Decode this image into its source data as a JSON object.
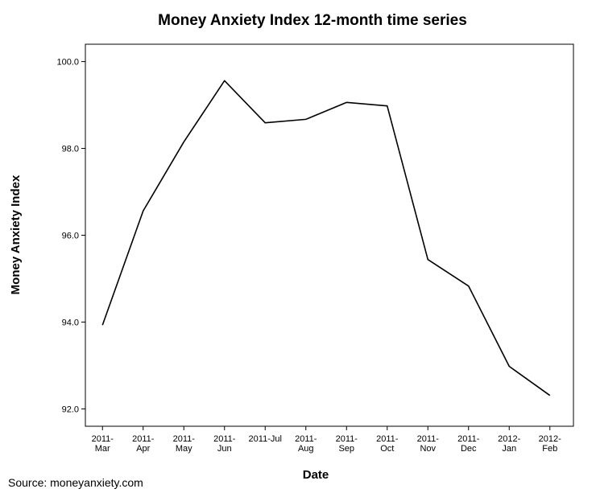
{
  "chart_data": {
    "type": "line",
    "title": "Money Anxiety Index 12-month time series",
    "x_label": "Date",
    "y_label": "Money Anxiety Index",
    "source": "Source: moneyanxiety.com",
    "categories": [
      "2011-\nMar",
      "2011-\nApr",
      "2011-\nMay",
      "2011-\nJun",
      "2011-Jul",
      "2011-\nAug",
      "2011-\nSep",
      "2011-\nOct",
      "2011-\nNov",
      "2011-\nDec",
      "2012-\nJan",
      "2012-\nFeb"
    ],
    "series": [
      {
        "name": "Money Anxiety Index",
        "color": "#000000",
        "values": [
          93.93,
          96.56,
          98.15,
          99.56,
          98.59,
          98.67,
          99.06,
          98.98,
          95.44,
          94.83,
          92.98,
          92.31
        ]
      }
    ],
    "ylim": [
      91.6,
      100.4
    ],
    "yticks": [
      {
        "value": 92,
        "label": "92.0"
      },
      {
        "value": 94,
        "label": "94.0"
      },
      {
        "value": 96,
        "label": "96.0"
      },
      {
        "value": 98,
        "label": "98.0"
      },
      {
        "value": 100,
        "label": "100.0"
      }
    ],
    "grid": false
  }
}
